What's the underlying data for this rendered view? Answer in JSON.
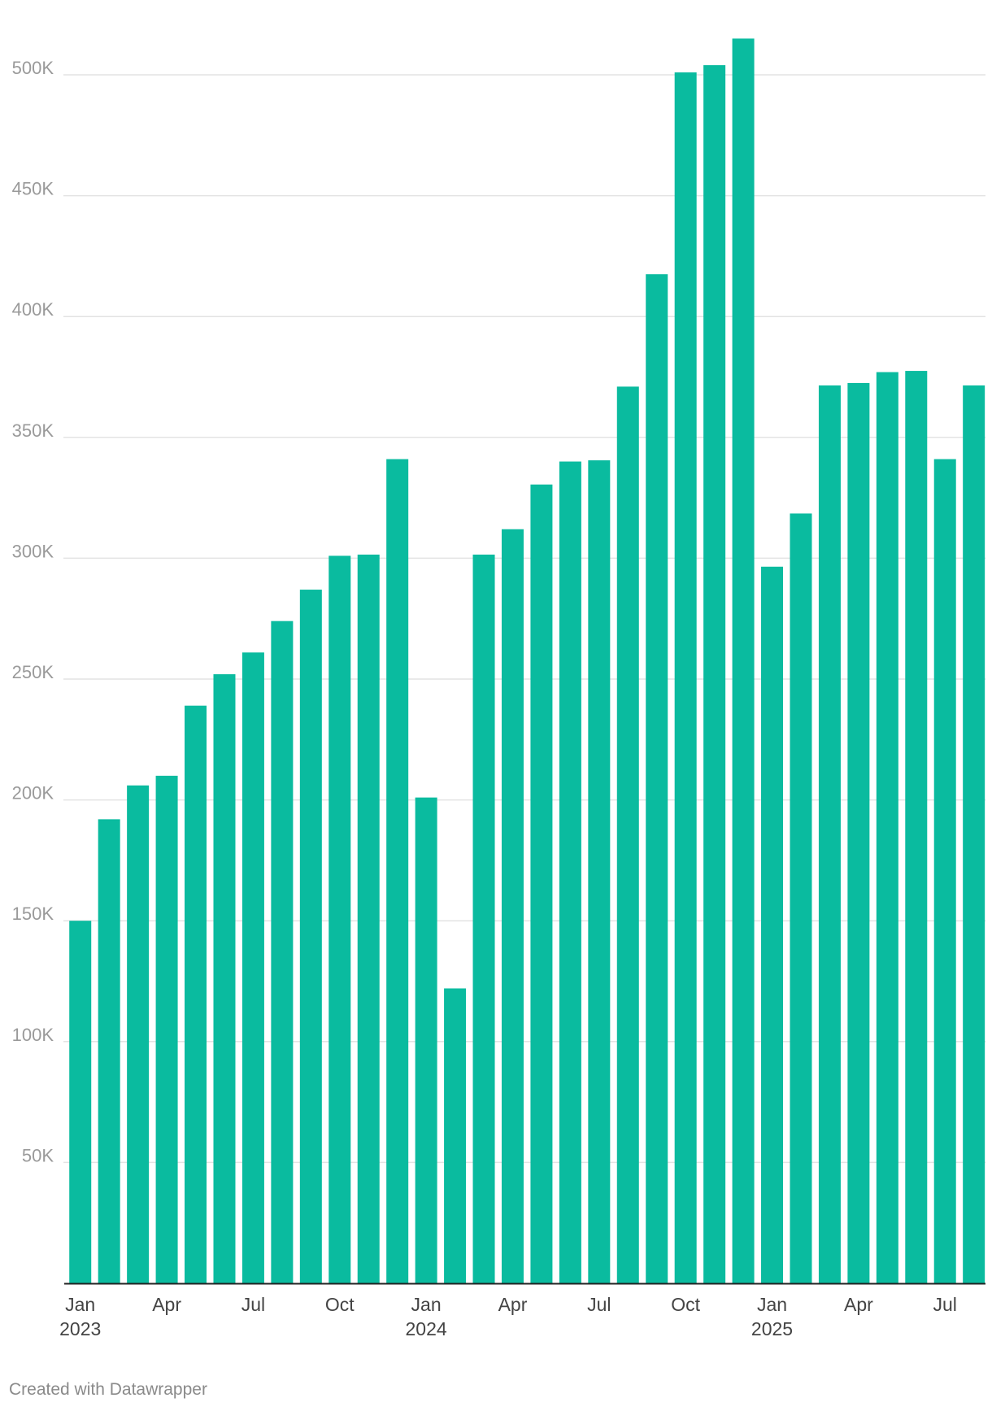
{
  "chart_data": {
    "type": "bar",
    "categories": [
      "2023-01",
      "2023-02",
      "2023-03",
      "2023-04",
      "2023-05",
      "2023-06",
      "2023-07",
      "2023-08",
      "2023-09",
      "2023-10",
      "2023-11",
      "2023-12",
      "2024-01",
      "2024-02",
      "2024-03",
      "2024-04",
      "2024-05",
      "2024-06",
      "2024-07",
      "2024-08",
      "2024-09",
      "2024-10",
      "2024-11",
      "2024-12",
      "2025-01",
      "2025-02",
      "2025-03",
      "2025-04",
      "2025-05",
      "2025-06",
      "2025-07",
      "2025-08"
    ],
    "values": [
      150000,
      192000,
      206000,
      210000,
      239000,
      252000,
      261000,
      274000,
      287000,
      301000,
      301500,
      341000,
      201000,
      122000,
      301500,
      312000,
      330500,
      340000,
      340500,
      371000,
      417500,
      501000,
      504000,
      515000,
      296500,
      318500,
      371500,
      372500,
      377000,
      377500,
      341000,
      371500
    ],
    "ylim": [
      0,
      520000
    ],
    "yticks": [
      50000,
      100000,
      150000,
      200000,
      250000,
      300000,
      350000,
      400000,
      450000,
      500000
    ],
    "ytick_labels": [
      "50K",
      "100K",
      "150K",
      "200K",
      "250K",
      "300K",
      "350K",
      "400K",
      "450K",
      "500K"
    ],
    "xticks": [
      {
        "index": 0,
        "label": "Jan",
        "year": "2023"
      },
      {
        "index": 3,
        "label": "Apr",
        "year": ""
      },
      {
        "index": 6,
        "label": "Jul",
        "year": ""
      },
      {
        "index": 9,
        "label": "Oct",
        "year": ""
      },
      {
        "index": 12,
        "label": "Jan",
        "year": "2024"
      },
      {
        "index": 15,
        "label": "Apr",
        "year": ""
      },
      {
        "index": 18,
        "label": "Jul",
        "year": ""
      },
      {
        "index": 21,
        "label": "Oct",
        "year": ""
      },
      {
        "index": 24,
        "label": "Jan",
        "year": "2025"
      },
      {
        "index": 27,
        "label": "Apr",
        "year": ""
      },
      {
        "index": 30,
        "label": "Jul",
        "year": ""
      }
    ],
    "title": "",
    "xlabel": "",
    "ylabel": "",
    "grid": true,
    "colors": {
      "bar": "#0abb9f",
      "grid": "#e3e3e3",
      "tick_text": "#9a9a9a",
      "x_text": "#444444",
      "axis": "#222222"
    }
  },
  "footer": {
    "credit": "Created with Datawrapper"
  }
}
